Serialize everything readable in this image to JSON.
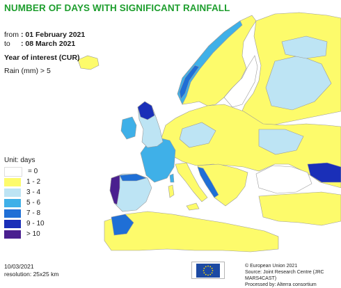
{
  "header": {
    "title": "NUMBER OF DAYS WITH SIGNIFICANT RAINFALL",
    "from_label": "from",
    "from_value": ": 01 February 2021",
    "to_label": "to",
    "to_value": ": 08 March 2021",
    "year_of_interest": "Year of interest (CUR)",
    "parameter": "Rain (mm) > 5"
  },
  "legend": {
    "unit": "Unit: days",
    "items": [
      {
        "label": "= 0",
        "color": "#ffffff"
      },
      {
        "label": "1 - 2",
        "color": "#fdfb6b"
      },
      {
        "label": "3 - 4",
        "color": "#bde4f4"
      },
      {
        "label": "5 - 6",
        "color": "#3fb0e8"
      },
      {
        "label": "7 - 8",
        "color": "#1f6fd6"
      },
      {
        "label": "9 - 10",
        "color": "#1a2fb8"
      },
      {
        "label": "> 10",
        "color": "#4a1f8f"
      }
    ]
  },
  "footer": {
    "date": "10/03/2021",
    "resolution": "resolution: 25x25 km",
    "copyright": "© European Union 2021",
    "source": "Source: Joint Research Centre (JRC MARS4CAST)",
    "processed": "Processed by: Alterra consortium"
  },
  "colors": {
    "title": "#1e9e2e",
    "boundary": "#9a9a9a",
    "eu_flag": "#1d4aa3",
    "eu_stars": "#ffdd00"
  }
}
